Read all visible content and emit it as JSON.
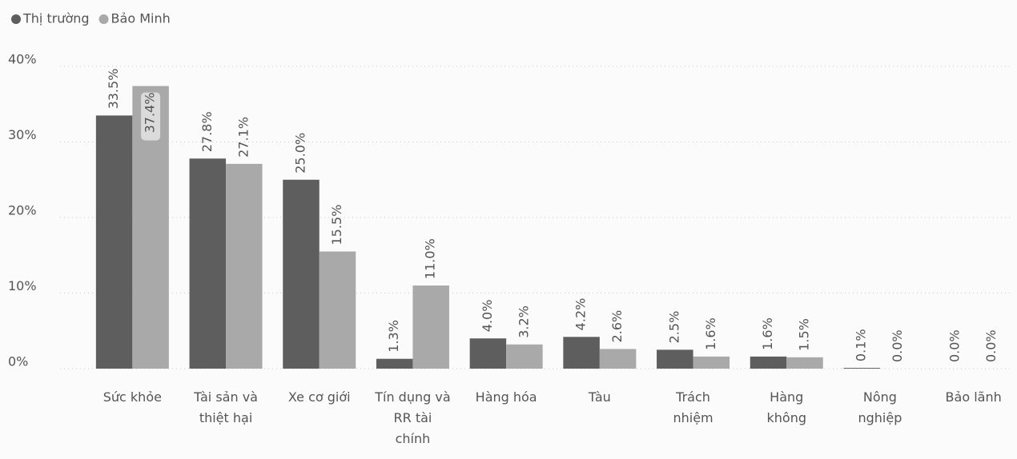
{
  "chart_data": {
    "type": "bar",
    "categories": [
      "Sức khỏe",
      "Tài sản và thiệt hại",
      "Xe cơ giới",
      "Tín dụng và RR tài chính",
      "Hàng hóa",
      "Tàu",
      "Trách nhiệm",
      "Hàng không",
      "Nông nghiệp",
      "Bảo lãnh"
    ],
    "series": [
      {
        "name": "Thị trường",
        "color": "#5e5e5e",
        "values": [
          33.5,
          27.8,
          25.0,
          1.3,
          4.0,
          4.2,
          2.5,
          1.6,
          0.1,
          0.0
        ],
        "value_labels": [
          "33.5%",
          "27.8%",
          "25.0%",
          "1.3%",
          "4.0%",
          "4.2%",
          "2.5%",
          "1.6%",
          "0.1%",
          "0.0%"
        ]
      },
      {
        "name": "Bảo Minh",
        "color": "#a9a9a9",
        "values": [
          37.4,
          27.1,
          15.5,
          11.0,
          3.2,
          2.6,
          1.6,
          1.5,
          0.0,
          0.0
        ],
        "value_labels": [
          "37.4%",
          "27.1%",
          "15.5%",
          "11.0%",
          "3.2%",
          "2.6%",
          "1.6%",
          "1.5%",
          "0.0%",
          "0.0%"
        ]
      }
    ],
    "ylim": [
      0,
      40
    ],
    "yticks": [
      {
        "value": 0,
        "label": "0%"
      },
      {
        "value": 10,
        "label": "10%"
      },
      {
        "value": 20,
        "label": "20%"
      },
      {
        "value": 30,
        "label": "30%"
      },
      {
        "value": 40,
        "label": "40%"
      }
    ],
    "grid": true,
    "legend": "top-left"
  }
}
